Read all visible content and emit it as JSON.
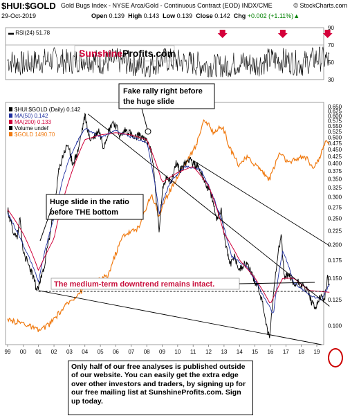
{
  "header": {
    "symbol": "$HUI:$GOLD",
    "description": "Gold Bugs Index - NYSE Arca/Gold - Continuous Contract (EOD) INDX/CME",
    "brand": "© StockCharts.com",
    "date": "29-Oct-2019",
    "open_label": "Open",
    "open": "0.139",
    "high_label": "High",
    "high": "0.143",
    "low_label": "Low",
    "low": "0.139",
    "close_label": "Close",
    "close": "0.142",
    "chg_label": "Chg",
    "chg": "+0.002 (+1.11%)",
    "chg_arrow": "▲"
  },
  "colors": {
    "price": "#000000",
    "ma50": "#1f2fa0",
    "ma200": "#d0003a",
    "gold": "#f07a10",
    "watermark_red": "#d4003a",
    "annotation_red": "#c8103c",
    "arrow_red": "#d4003a"
  },
  "chart_data": [
    {
      "type": "line",
      "name": "rsi_panel",
      "label": "RSI(24) 51.78",
      "ylim": [
        30,
        90
      ],
      "yticks": [
        "90",
        "70",
        "50",
        "30"
      ],
      "reference_lines": [
        70,
        30
      ],
      "x": [
        1999,
        2000,
        2001,
        2002,
        2003,
        2004,
        2005,
        2006,
        2007,
        2008,
        2009,
        2010,
        2011,
        2012,
        2013,
        2014,
        2015,
        2016,
        2017,
        2018,
        2019,
        2019.8
      ],
      "values": [
        52,
        48,
        51,
        53,
        50,
        55,
        50,
        52,
        49,
        45,
        53,
        51,
        49,
        46,
        44,
        50,
        47,
        53,
        52,
        48,
        55,
        52
      ],
      "markers": [
        {
          "x": 2012.9
        },
        {
          "x": 2016.8
        },
        {
          "x": 2019.7
        }
      ]
    },
    {
      "type": "line",
      "name": "main_panel",
      "yscale": "log",
      "ylim": [
        0.085,
        0.65
      ],
      "yticks": [
        "0.650",
        "0.625",
        "0.600",
        "0.575",
        "0.550",
        "0.525",
        "0.500",
        "0.475",
        "0.450",
        "0.425",
        "0.400",
        "0.375",
        "0.350",
        "0.325",
        "0.300",
        "0.275",
        "0.250",
        "0.225",
        "0.200",
        "0.175",
        "0.150",
        "0.125",
        "0.100"
      ],
      "xticks": [
        "99",
        "00",
        "01",
        "02",
        "03",
        "04",
        "05",
        "06",
        "07",
        "08",
        "09",
        "10",
        "11",
        "12",
        "13",
        "14",
        "15",
        "16",
        "17",
        "18",
        "19"
      ],
      "legend": [
        {
          "label": "$HUI:$GOLD (Daily) 0.142",
          "color": "#000000"
        },
        {
          "label": "MA(50) 0.142",
          "color": "#1f2fa0"
        },
        {
          "label": "MA(200) 0.133",
          "color": "#d0003a"
        },
        {
          "label": "Volume undef",
          "color": "#000000"
        },
        {
          "label": "$GOLD 1490.70",
          "color": "#f07a10"
        }
      ],
      "series": [
        {
          "name": "$HUI:$GOLD",
          "x": [
            1999.0,
            1999.3,
            1999.6,
            1999.8,
            2000.0,
            2000.3,
            2000.6,
            2000.9,
            2001.1,
            2001.4,
            2001.7,
            2002.0,
            2002.3,
            2002.6,
            2002.9,
            2003.2,
            2003.5,
            2003.8,
            2004.0,
            2004.3,
            2004.6,
            2004.9,
            2005.2,
            2005.5,
            2005.8,
            2006.0,
            2006.3,
            2006.6,
            2006.9,
            2007.2,
            2007.5,
            2007.8,
            2008.0,
            2008.3,
            2008.6,
            2008.8,
            2009.0,
            2009.3,
            2009.6,
            2009.9,
            2010.2,
            2010.5,
            2010.8,
            2011.0,
            2011.3,
            2011.6,
            2011.9,
            2012.2,
            2012.5,
            2012.8,
            2013.1,
            2013.4,
            2013.7,
            2014.0,
            2014.3,
            2014.6,
            2014.9,
            2015.2,
            2015.5,
            2015.8,
            2015.95,
            2016.2,
            2016.5,
            2016.7,
            2016.9,
            2017.2,
            2017.5,
            2017.8,
            2018.1,
            2018.4,
            2018.7,
            2018.9,
            2019.2,
            2019.5,
            2019.7,
            2019.82
          ],
          "values": [
            0.27,
            0.23,
            0.21,
            0.25,
            0.19,
            0.17,
            0.155,
            0.135,
            0.145,
            0.17,
            0.21,
            0.27,
            0.37,
            0.43,
            0.47,
            0.4,
            0.43,
            0.52,
            0.6,
            0.49,
            0.5,
            0.53,
            0.46,
            0.52,
            0.57,
            0.55,
            0.5,
            0.53,
            0.52,
            0.49,
            0.51,
            0.5,
            0.48,
            0.45,
            0.3,
            0.22,
            0.31,
            0.36,
            0.34,
            0.4,
            0.38,
            0.4,
            0.42,
            0.4,
            0.39,
            0.36,
            0.33,
            0.3,
            0.25,
            0.27,
            0.2,
            0.17,
            0.18,
            0.16,
            0.17,
            0.165,
            0.15,
            0.14,
            0.12,
            0.095,
            0.09,
            0.13,
            0.19,
            0.215,
            0.15,
            0.155,
            0.14,
            0.145,
            0.14,
            0.135,
            0.12,
            0.115,
            0.13,
            0.125,
            0.15,
            0.142
          ]
        },
        {
          "name": "MA(50)",
          "x": [
            1999.0,
            2000.0,
            2001.0,
            2002.0,
            2003.0,
            2004.0,
            2005.0,
            2006.0,
            2007.0,
            2008.0,
            2008.8,
            2009.5,
            2010.5,
            2011.5,
            2012.5,
            2013.5,
            2014.5,
            2015.5,
            2016.2,
            2016.8,
            2017.5,
            2018.5,
            2019.3,
            2019.82
          ],
          "values": [
            0.26,
            0.2,
            0.145,
            0.25,
            0.42,
            0.54,
            0.5,
            0.53,
            0.5,
            0.48,
            0.26,
            0.34,
            0.39,
            0.38,
            0.28,
            0.18,
            0.165,
            0.13,
            0.11,
            0.19,
            0.145,
            0.13,
            0.125,
            0.142
          ]
        },
        {
          "name": "MA(200)",
          "x": [
            1999.0,
            2000.0,
            2001.0,
            2002.0,
            2003.0,
            2004.0,
            2005.0,
            2006.0,
            2007.0,
            2008.0,
            2009.0,
            2010.0,
            2011.0,
            2012.0,
            2013.0,
            2014.0,
            2015.0,
            2016.0,
            2016.8,
            2017.5,
            2018.5,
            2019.82
          ],
          "values": [
            0.27,
            0.22,
            0.16,
            0.21,
            0.35,
            0.49,
            0.51,
            0.52,
            0.51,
            0.49,
            0.34,
            0.37,
            0.39,
            0.33,
            0.22,
            0.175,
            0.15,
            0.12,
            0.15,
            0.15,
            0.135,
            0.133
          ]
        },
        {
          "name": "$GOLD",
          "axis": "overlay",
          "x": [
            1999.0,
            2000.0,
            2001.0,
            2001.7,
            2002.5,
            2003.5,
            2004.5,
            2005.5,
            2006.5,
            2007.5,
            2008.3,
            2008.8,
            2009.5,
            2010.5,
            2011.2,
            2011.7,
            2012.3,
            2012.9,
            2013.4,
            2013.9,
            2014.5,
            2015.3,
            2015.95,
            2016.6,
            2017.2,
            2017.8,
            2018.4,
            2018.7,
            2019.2,
            2019.6,
            2019.82
          ],
          "values": [
            290,
            285,
            265,
            280,
            320,
            370,
            410,
            440,
            640,
            680,
            930,
            760,
            960,
            1230,
            1450,
            1850,
            1650,
            1720,
            1400,
            1220,
            1300,
            1180,
            1060,
            1360,
            1230,
            1300,
            1300,
            1180,
            1300,
            1520,
            1490.7
          ]
        }
      ],
      "trendlines": [
        {
          "from": [
            2004.2,
            0.61
          ],
          "to": [
            2019.82,
            0.118
          ]
        },
        {
          "from": [
            2001.0,
            0.135
          ],
          "to": [
            2019.3,
            0.085
          ]
        },
        {
          "from": [
            2011.0,
            0.41
          ],
          "to": [
            2019.82,
            0.198
          ]
        },
        {
          "from": [
            2001.0,
            0.134
          ],
          "to": [
            2019.5,
            0.134
          ]
        }
      ],
      "annotations": {
        "watermark": {
          "part1": "Sunshine",
          "part2": "Profits.com"
        },
        "fake_rally": "Fake rally right before the huge slide",
        "huge_slide": "Huge slide in the ratio before THE bottom",
        "downtrend": "The medium-term downtrend remains intact."
      }
    }
  ],
  "footer_text": "Only half of our free analyses is published outside of our website. You can easily get the extra edge over other investors and traders, by signing up for our free mailing list at SunshineProfits.com. Sign up today."
}
